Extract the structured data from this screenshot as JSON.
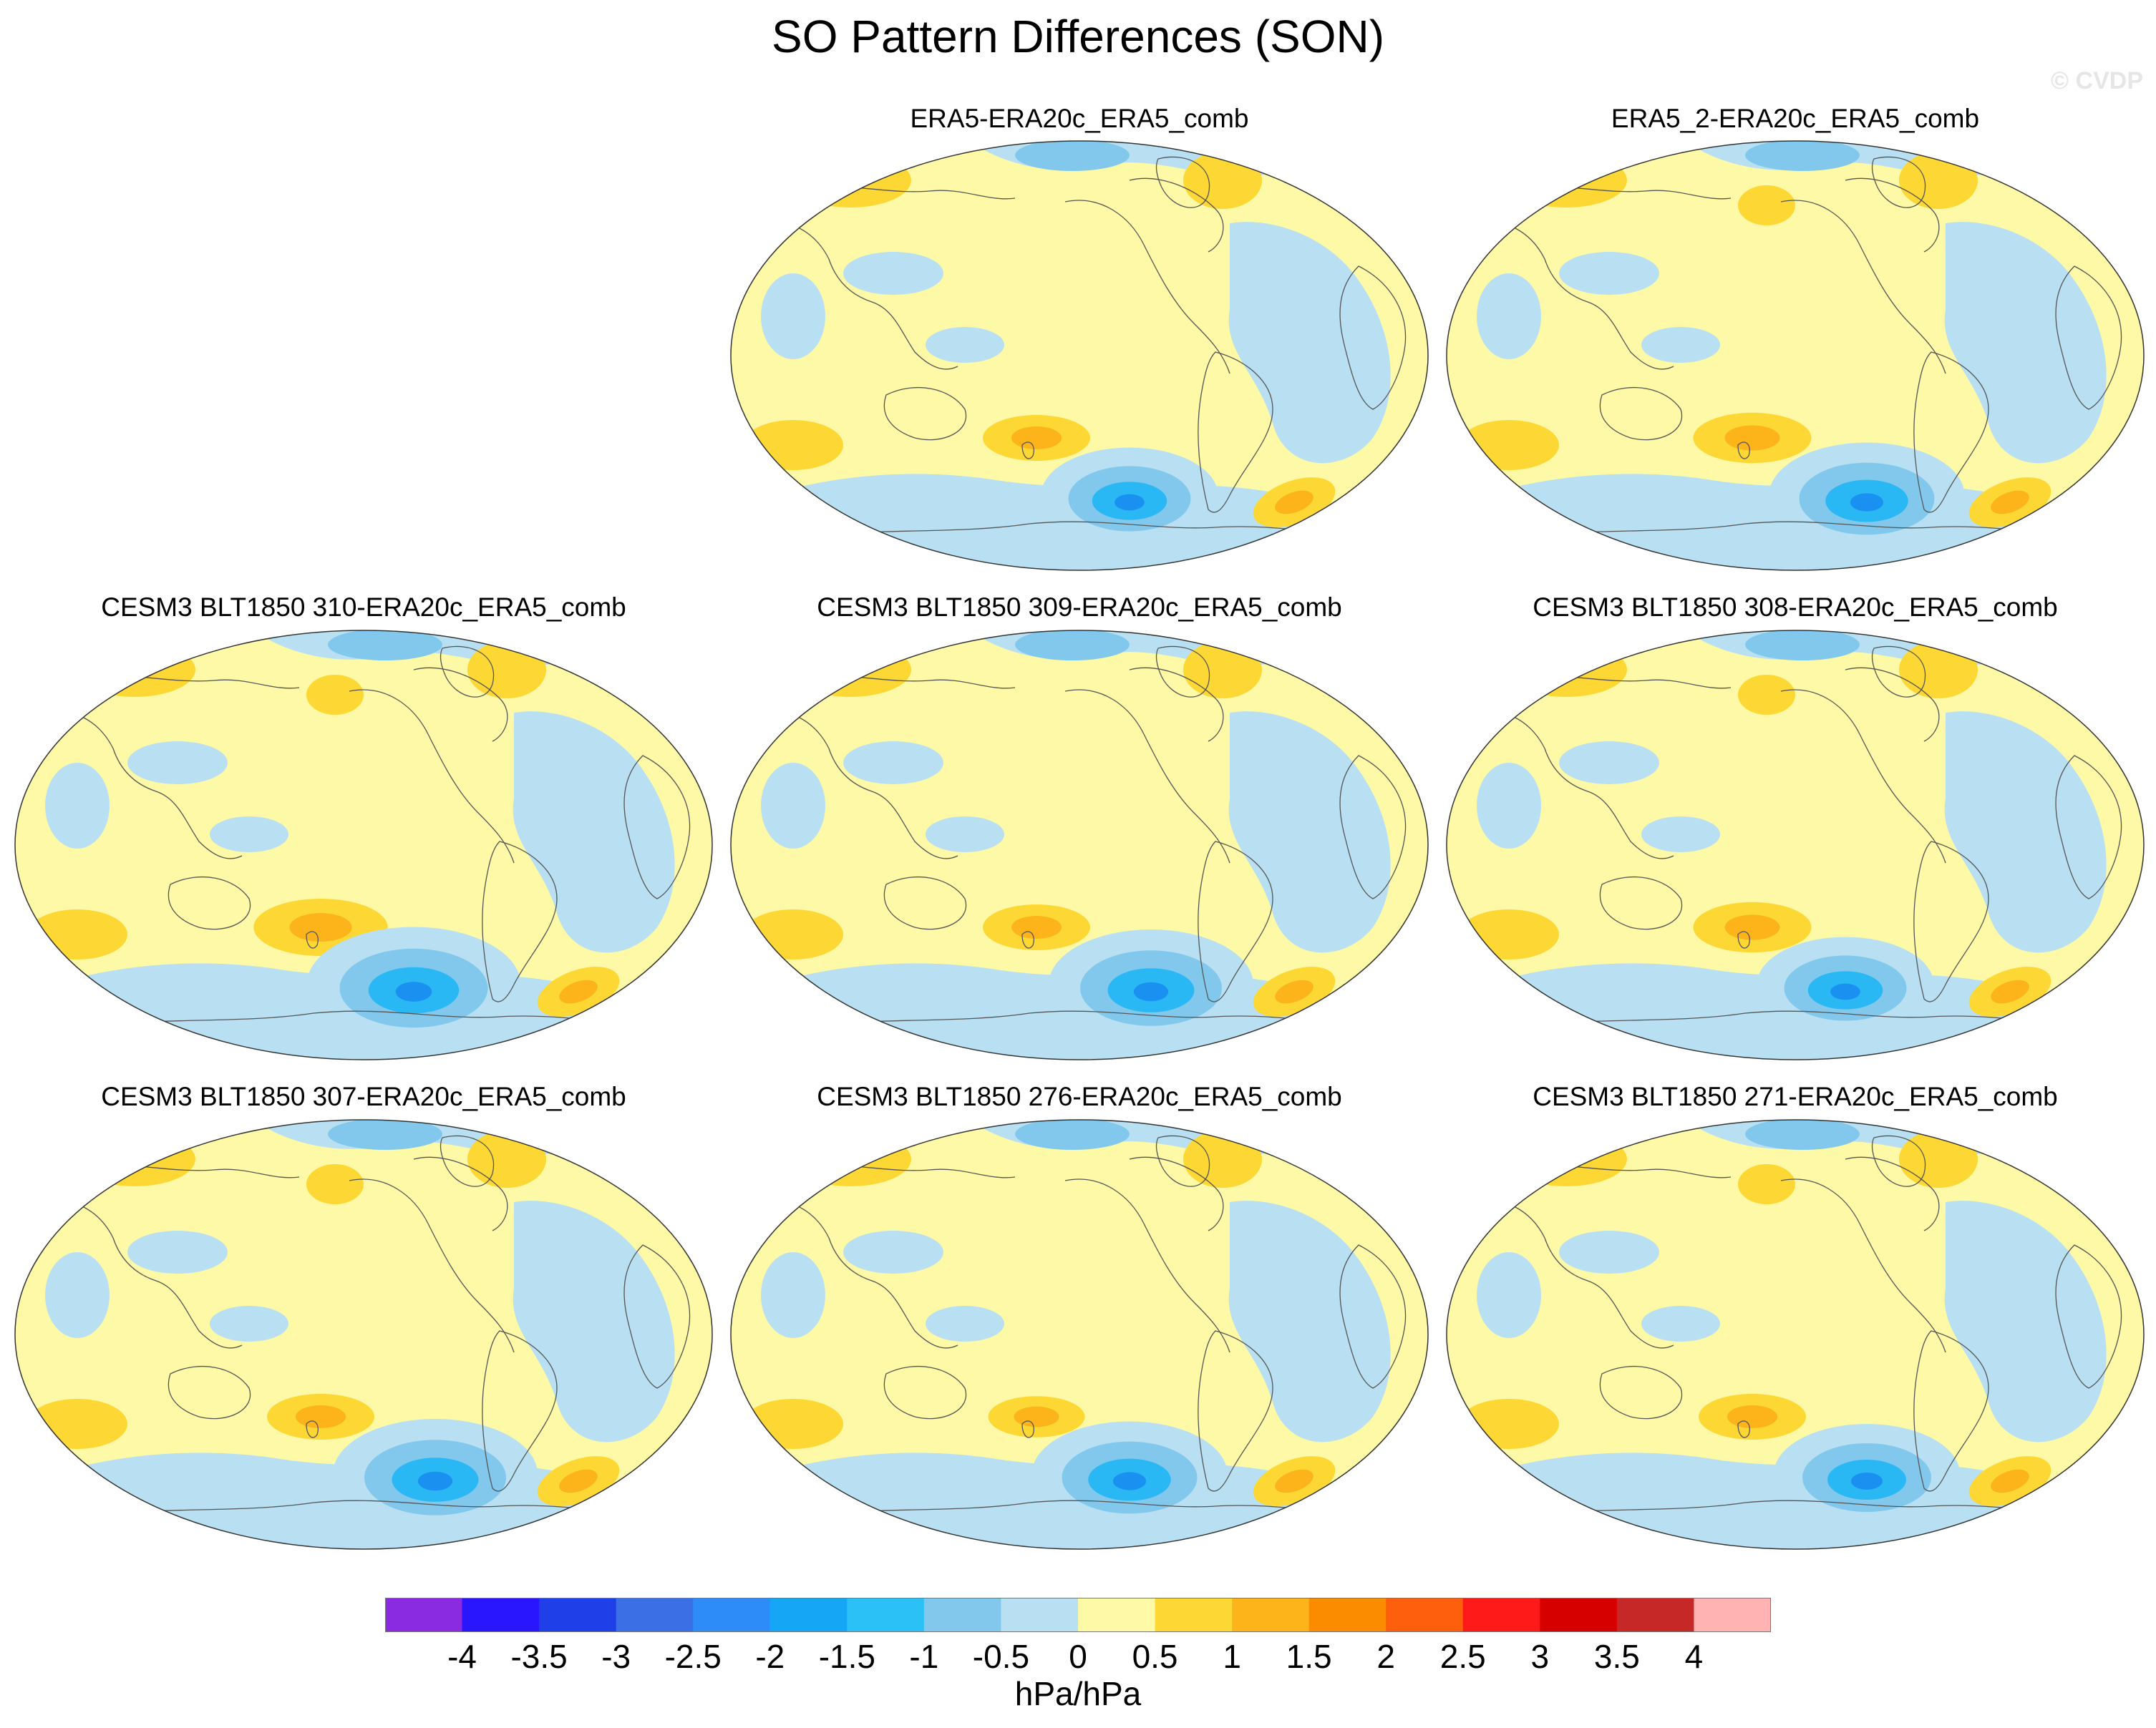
{
  "title": "SO Pattern Differences (SON)",
  "watermark": "© CVDP",
  "colors": {
    "yellow_light": "#fef9a6",
    "yellow": "#fdd835",
    "orange": "#fcb41a",
    "blue_light": "#b8e0f2",
    "blue": "#82c8ec",
    "blue_strong": "#2ab8f4",
    "blue_deep": "#1a90f0",
    "coast": "#555555"
  },
  "panels": [
    {
      "label": "ERA5-ERA20c_ERA5_comb"
    },
    {
      "label": "ERA5_2-ERA20c_ERA5_comb"
    },
    {
      "label": "CESM3 BLT1850 310-ERA20c_ERA5_comb"
    },
    {
      "label": "CESM3 BLT1850 309-ERA20c_ERA5_comb"
    },
    {
      "label": "CESM3 BLT1850 308-ERA20c_ERA5_comb"
    },
    {
      "label": "CESM3 BLT1850 307-ERA20c_ERA5_comb"
    },
    {
      "label": "CESM3 BLT1850 276-ERA20c_ERA5_comb"
    },
    {
      "label": "CESM3 BLT1850 271-ERA20c_ERA5_comb"
    }
  ],
  "colorbar": {
    "ticks": [
      "-4",
      "-3.5",
      "-3",
      "-2.5",
      "-2",
      "-1.5",
      "-1",
      "-0.5",
      "0",
      "0.5",
      "1",
      "1.5",
      "2",
      "2.5",
      "3",
      "3.5",
      "4"
    ],
    "colors": [
      "#8a2be2",
      "#2a15ff",
      "#1f3fe8",
      "#3a6fe6",
      "#2e8cf8",
      "#16a6f6",
      "#2cc1f6",
      "#82c8ec",
      "#b8e0f2",
      "#fef9a6",
      "#fdd835",
      "#fcb41a",
      "#fb8c00",
      "#fd5f0c",
      "#ff1a1a",
      "#d60000",
      "#c62828",
      "#ffb3b3"
    ],
    "units": "hPa/hPa"
  }
}
